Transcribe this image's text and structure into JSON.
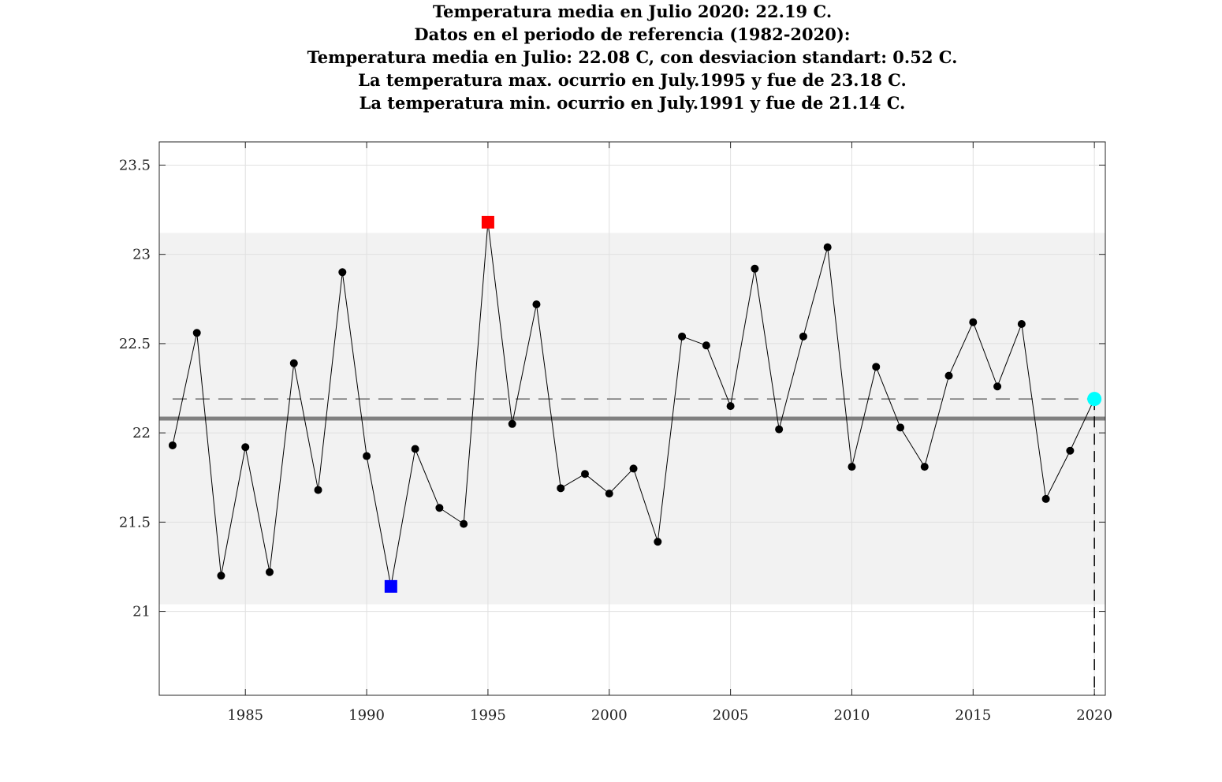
{
  "chart_data": {
    "type": "line",
    "title": [
      "Temperatura media en Julio 2020: 22.19 C.",
      "Datos en el periodo de referencia (1982-2020):",
      "Temperatura media en Julio: 22.08 C, con desviacion standart: 0.52 C.",
      "La temperatura max. ocurrio en July.1995 y fue de 23.18 C.",
      "La temperatura min. ocurrio en July.1991 y fue de 21.14 C."
    ],
    "xlabel": "",
    "ylabel": "",
    "xlim": [
      1981.45,
      2020.45
    ],
    "ylim": [
      20.53,
      23.63
    ],
    "xticks": [
      1985,
      1990,
      1995,
      2000,
      2005,
      2010,
      2015,
      2020
    ],
    "yticks": [
      21,
      21.5,
      22,
      22.5,
      23,
      23.5
    ],
    "xtick_labels": [
      "1985",
      "1990",
      "1995",
      "2000",
      "2005",
      "2010",
      "2015",
      "2020"
    ],
    "ytick_labels": [
      "21",
      "21.5",
      "22",
      "22.5",
      "23",
      "23.5"
    ],
    "grid": true,
    "x": [
      1982,
      1983,
      1984,
      1985,
      1986,
      1987,
      1988,
      1989,
      1990,
      1991,
      1992,
      1993,
      1994,
      1995,
      1996,
      1997,
      1998,
      1999,
      2000,
      2001,
      2002,
      2003,
      2004,
      2005,
      2006,
      2007,
      2008,
      2009,
      2010,
      2011,
      2012,
      2013,
      2014,
      2015,
      2016,
      2017,
      2018,
      2019,
      2020
    ],
    "values": [
      21.93,
      22.56,
      21.2,
      21.92,
      21.22,
      22.39,
      21.68,
      22.9,
      21.87,
      21.14,
      21.91,
      21.58,
      21.49,
      23.18,
      22.05,
      22.72,
      21.69,
      21.77,
      21.66,
      21.8,
      21.39,
      22.54,
      22.49,
      22.15,
      22.92,
      22.02,
      22.54,
      23.04,
      21.81,
      22.37,
      22.03,
      21.81,
      22.32,
      22.62,
      22.26,
      22.61,
      21.63,
      21.9,
      22.19
    ],
    "reference_mean": 22.08,
    "std_dev": 0.52,
    "band": [
      21.04,
      23.12
    ],
    "current_year": 2020,
    "current_value": 22.19,
    "max_point": {
      "x": 1995,
      "y": 23.18
    },
    "min_point": {
      "x": 1991,
      "y": 21.14
    },
    "colors": {
      "line": "#000000",
      "marker": "#000000",
      "band": "#f2f2f2",
      "mean_line": "#808080",
      "current_dash": "#707070",
      "max_marker": "#ff0000",
      "min_marker": "#0000ff",
      "current_marker": "#00ffff",
      "grid": "#e0e0e0"
    }
  }
}
